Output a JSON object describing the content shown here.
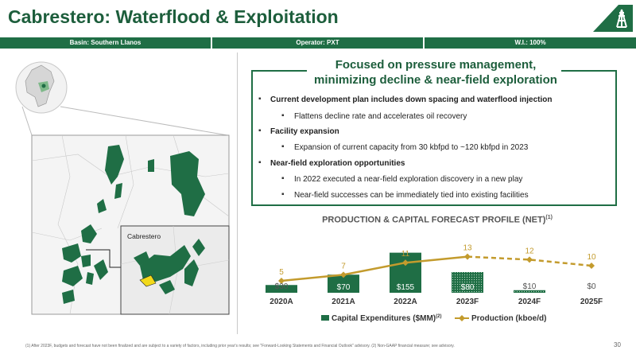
{
  "page": {
    "title": "Cabrestero: Waterflood & Exploitation",
    "number": "30"
  },
  "infobar": {
    "basin": "Basin: Southern Llanos",
    "operator": "Operator: PXT",
    "wi": "W.I.: 100%"
  },
  "map": {
    "callout_label": "Cabrestero"
  },
  "highlights": {
    "headline_line1": "Focused on pressure management,",
    "headline_line2": "minimizing decline & near-field exploration",
    "bullets": [
      {
        "level": 1,
        "text": "Current development plan includes down spacing and waterflood injection"
      },
      {
        "level": 2,
        "text": "Flattens decline rate and accelerates oil recovery"
      },
      {
        "level": 1,
        "text": "Facility expansion"
      },
      {
        "level": 2,
        "text": "Expansion of current capacity from 30 kbfpd to ~120 kbfpd in 2023"
      },
      {
        "level": 1,
        "text": "Near-field exploration opportunities"
      },
      {
        "level": 2,
        "text": "In 2022 executed a near-field exploration discovery in a new play"
      },
      {
        "level": 2,
        "text": "Near-field successes can be immediately tied into existing facilities"
      }
    ]
  },
  "chart": {
    "title": "PRODUCTION & CAPITAL FORECAST PROFILE (NET)",
    "title_sup": "(1)"
  },
  "chart_data": {
    "type": "bar",
    "categories": [
      "2020A",
      "2021A",
      "2022A",
      "2023F",
      "2024F",
      "2025F"
    ],
    "series": [
      {
        "name": "Capital Expenditures ($MM)",
        "name_sup": "(2)",
        "kind": "bar",
        "values": [
          30,
          70,
          155,
          80,
          10,
          0
        ],
        "labels": [
          "$30",
          "$70",
          "$155",
          "$80",
          "$10",
          "$0"
        ],
        "forecast_from_index": 3
      },
      {
        "name": "Production (kboe/d)",
        "kind": "line",
        "values": [
          5,
          7,
          11,
          13,
          12,
          10
        ],
        "forecast_from_index": 3
      }
    ],
    "colors": {
      "bar": "#1f6e45",
      "line": "#c39b2d"
    },
    "legend_position": "bottom"
  },
  "footnote": "(1) After 2023F, budgets and forecast have not been finalized and are subject to a variety of factors, including prior year's results; see \"Forward-Looking Statements and Financial Outlook\" advisory. (2) Non-GAAP financial measure; see advisory."
}
